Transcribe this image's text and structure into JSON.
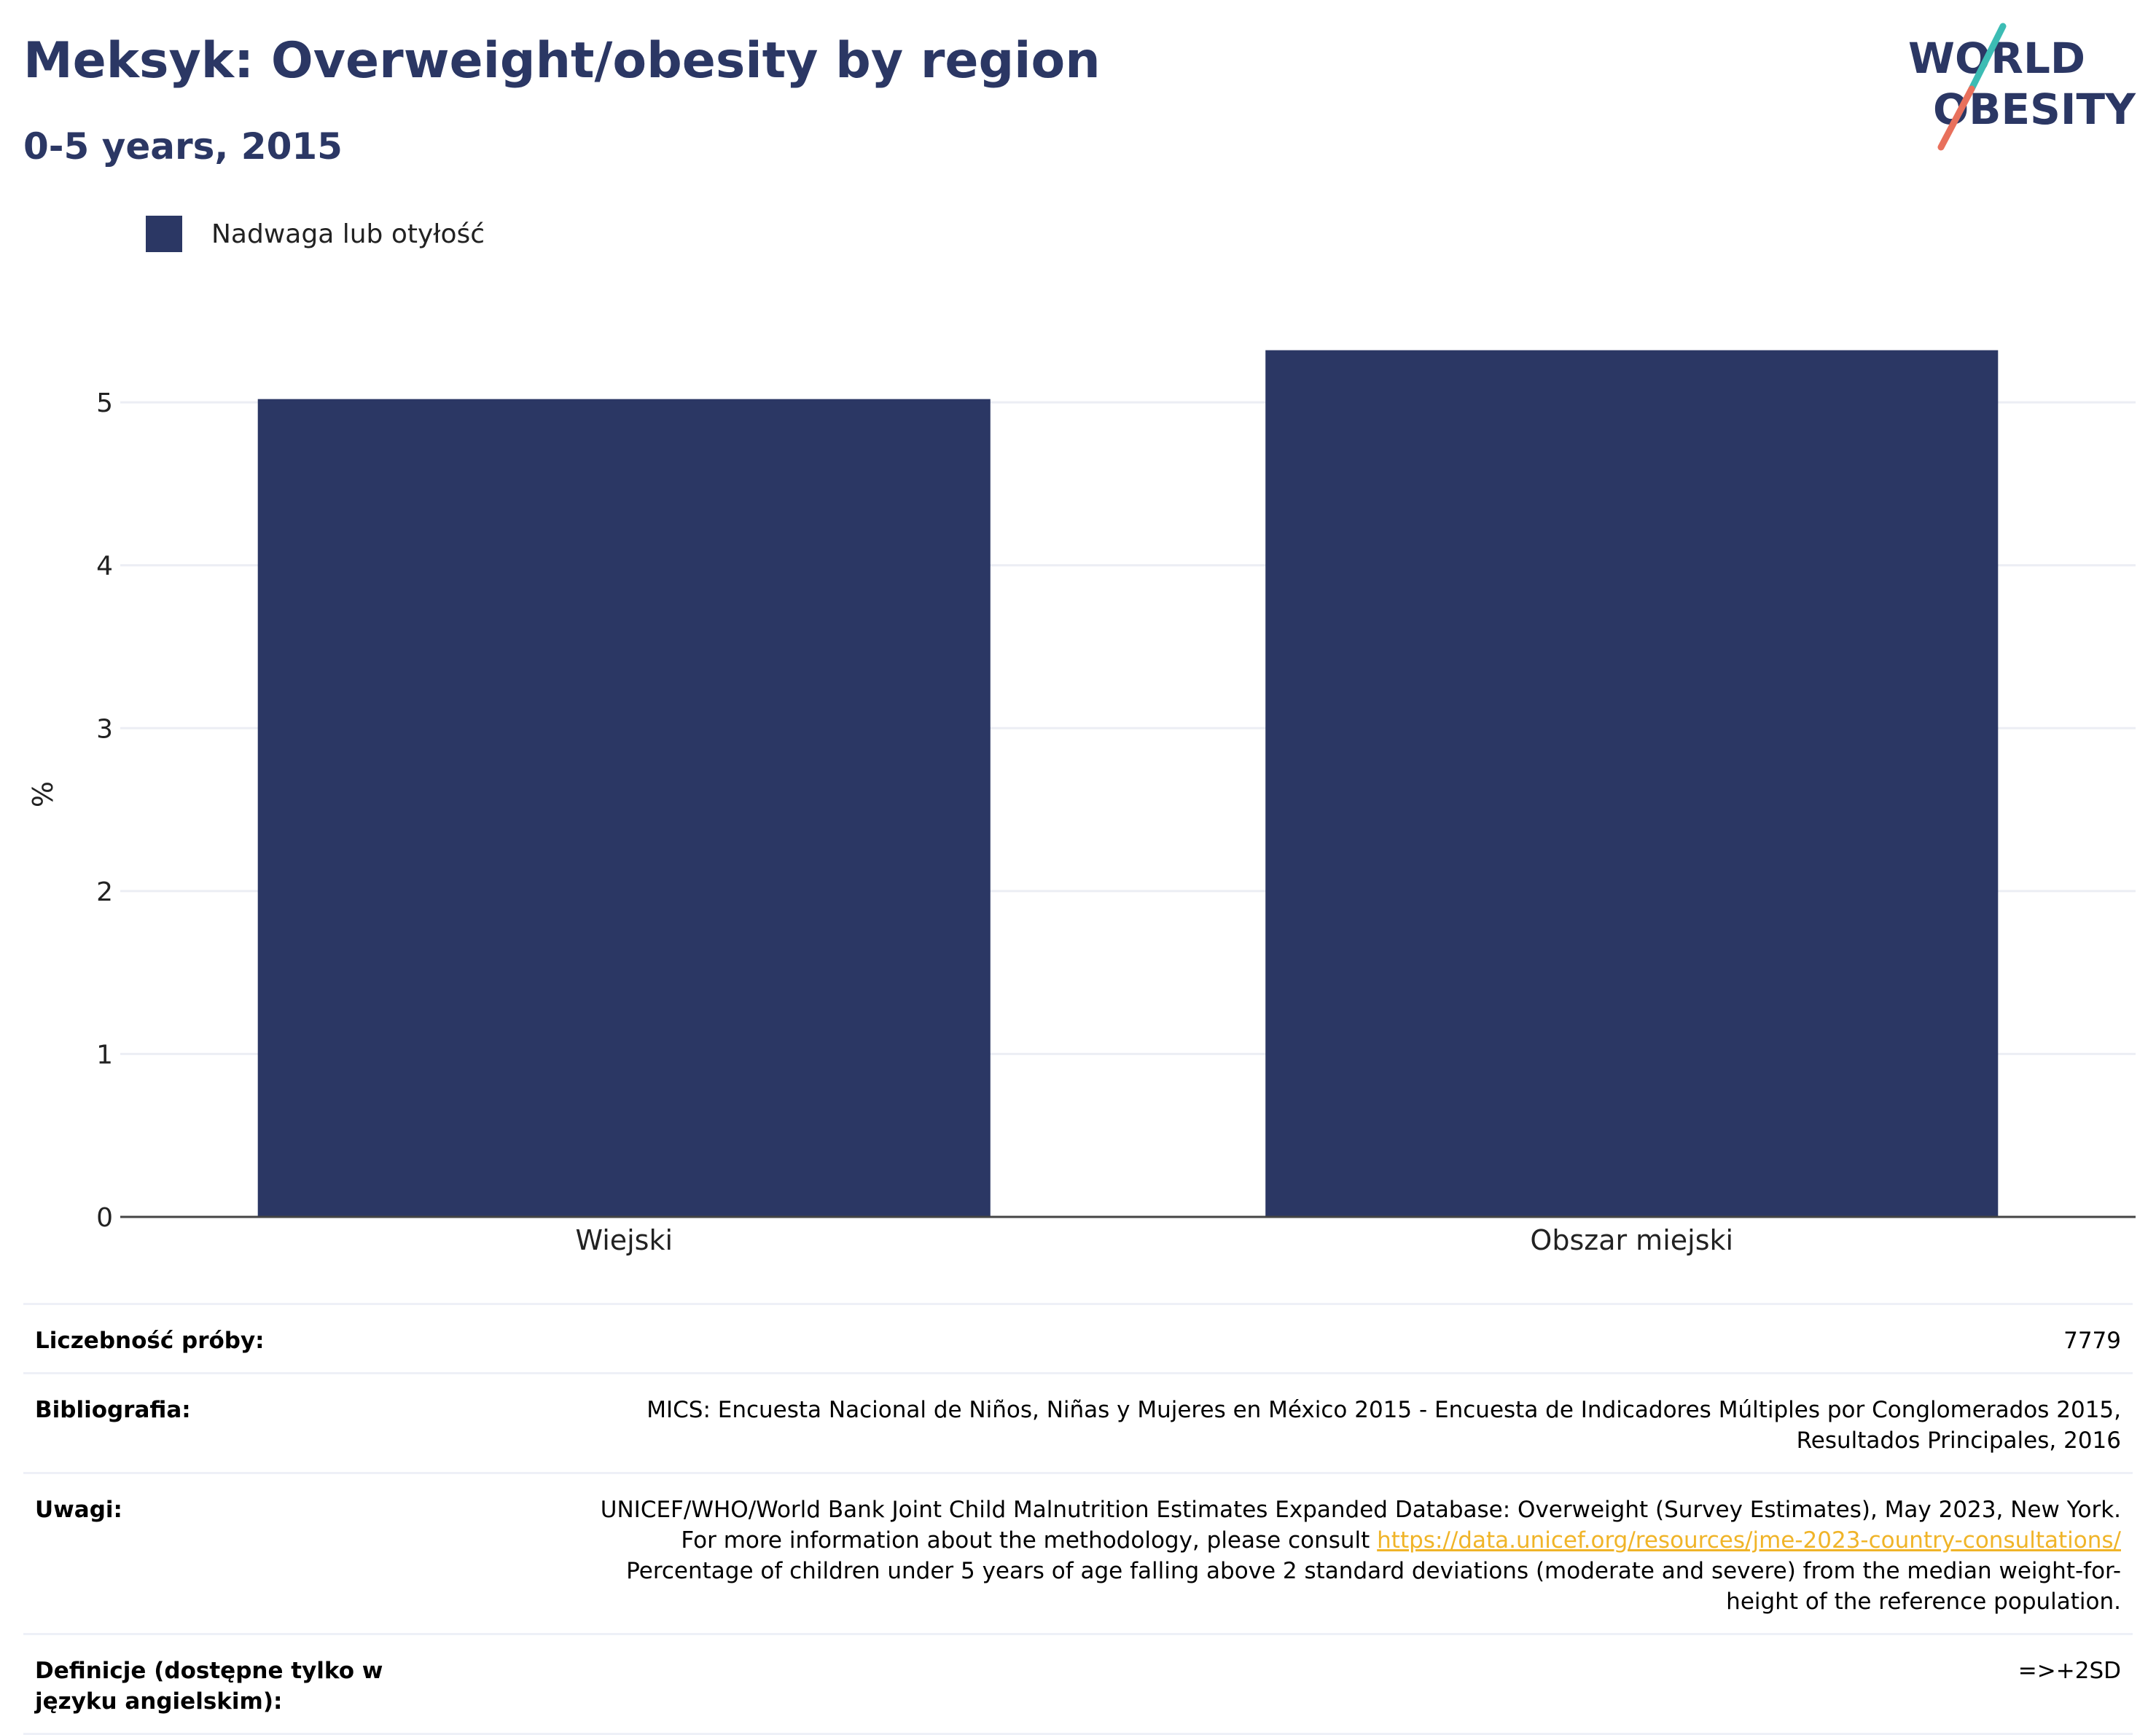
{
  "title": "Meksyk: Overweight/obesity by region",
  "subtitle": "0-5 years, 2015",
  "logo": {
    "line1": "WORLD",
    "line2": "OBESITY"
  },
  "colors": {
    "bar": "#2b3764",
    "title": "#2b3764",
    "link": "#f0b428",
    "logo_teal": "#3cbcb4",
    "logo_coral": "#e8705c"
  },
  "chart_data": {
    "type": "bar",
    "categories": [
      "Wiejski",
      "Obszar miejski"
    ],
    "series": [
      {
        "name": "Nadwaga lub otyłość",
        "values": [
          5.02,
          5.32
        ]
      }
    ],
    "ylabel": "%",
    "xlabel": "",
    "ylim": [
      0,
      5.6
    ],
    "yticks": [
      0,
      1,
      2,
      3,
      4,
      5
    ],
    "grid": true,
    "legend_position": "top-left"
  },
  "info": {
    "sample_size": {
      "label": "Liczebność próby:",
      "value": "7779"
    },
    "bibliography": {
      "label": "Bibliografia:",
      "value": "MICS: Encuesta Nacional de Niños, Niñas y Mujeres en México 2015 - Encuesta de Indicadores Múltiples por Conglomerados 2015, Resultados Principales, 2016"
    },
    "notes": {
      "label": "Uwagi:",
      "value_before": "UNICEF/WHO/World Bank Joint Child Malnutrition Estimates Expanded Database: Overweight (Survey Estimates), May 2023, New York. For more information about the methodology, please consult ",
      "link": "https://data.unicef.org/resources/jme-2023-country-consultations/",
      "value_after": " Percentage of children under 5 years of age falling above 2 standard deviations (moderate and severe) from the median weight-for-height of the reference population."
    },
    "definitions": {
      "label": "Definicje (dostępne tylko w języku angielskim):",
      "value": "=>+2SD"
    }
  }
}
